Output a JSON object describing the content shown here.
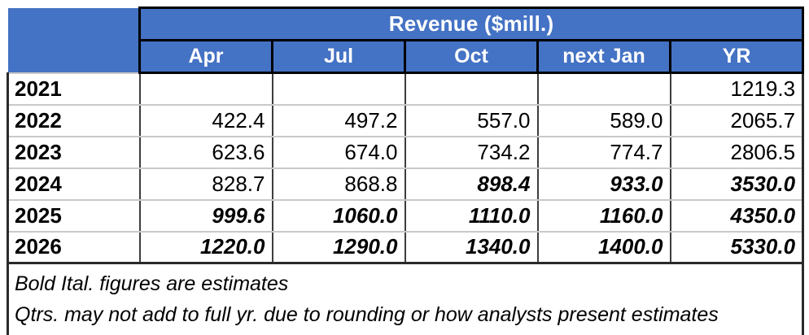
{
  "table": {
    "title": "Revenue ($mill.)",
    "columns": [
      "Apr",
      "Jul",
      "Oct",
      "next Jan",
      "YR"
    ],
    "rows": [
      {
        "year": "2021",
        "values": [
          "",
          "",
          "",
          "",
          "1219.3"
        ],
        "estimates": [
          false,
          false,
          false,
          false,
          false
        ]
      },
      {
        "year": "2022",
        "values": [
          "422.4",
          "497.2",
          "557.0",
          "589.0",
          "2065.7"
        ],
        "estimates": [
          false,
          false,
          false,
          false,
          false
        ]
      },
      {
        "year": "2023",
        "values": [
          "623.6",
          "674.0",
          "734.2",
          "774.7",
          "2806.5"
        ],
        "estimates": [
          false,
          false,
          false,
          false,
          false
        ]
      },
      {
        "year": "2024",
        "values": [
          "828.7",
          "868.8",
          "898.4",
          "933.0",
          "3530.0"
        ],
        "estimates": [
          false,
          false,
          true,
          true,
          true
        ]
      },
      {
        "year": "2025",
        "values": [
          "999.6",
          "1060.0",
          "1110.0",
          "1160.0",
          "4350.0"
        ],
        "estimates": [
          true,
          true,
          true,
          true,
          true
        ]
      },
      {
        "year": "2026",
        "values": [
          "1220.0",
          "1290.0",
          "1340.0",
          "1400.0",
          "5330.0"
        ],
        "estimates": [
          true,
          true,
          true,
          true,
          true
        ]
      }
    ],
    "notes": [
      "Bold Ital. figures are estimates",
      "Qtrs. may not add to full yr. due to rounding or how analysts present estimates"
    ],
    "colors": {
      "header_blue": "#4472C4",
      "header_text": "#ffffff",
      "body_text": "#000000",
      "outer_border": "#2a2a2a",
      "column_grid": "#3d3d3d",
      "row_grid": "#c9c9c9"
    }
  },
  "chart_data": {
    "type": "table",
    "title": "Revenue ($mill.)",
    "columns": [
      "Apr",
      "Jul",
      "Oct",
      "next Jan",
      "YR"
    ],
    "row_labels": [
      "2021",
      "2022",
      "2023",
      "2024",
      "2025",
      "2026"
    ],
    "values": [
      [
        null,
        null,
        null,
        null,
        1219.3
      ],
      [
        422.4,
        497.2,
        557.0,
        589.0,
        2065.7
      ],
      [
        623.6,
        674.0,
        734.2,
        774.7,
        2806.5
      ],
      [
        828.7,
        868.8,
        898.4,
        933.0,
        3530.0
      ],
      [
        999.6,
        1060.0,
        1110.0,
        1160.0,
        4350.0
      ],
      [
        1220.0,
        1290.0,
        1340.0,
        1400.0,
        5330.0
      ]
    ],
    "estimate_flags": [
      [
        false,
        false,
        false,
        false,
        false
      ],
      [
        false,
        false,
        false,
        false,
        false
      ],
      [
        false,
        false,
        false,
        false,
        false
      ],
      [
        false,
        false,
        true,
        true,
        true
      ],
      [
        true,
        true,
        true,
        true,
        true
      ],
      [
        true,
        true,
        true,
        true,
        true
      ]
    ],
    "notes": [
      "Bold Ital. figures are estimates",
      "Qtrs. may not add to full yr. due to rounding or how analysts present estimates"
    ]
  }
}
